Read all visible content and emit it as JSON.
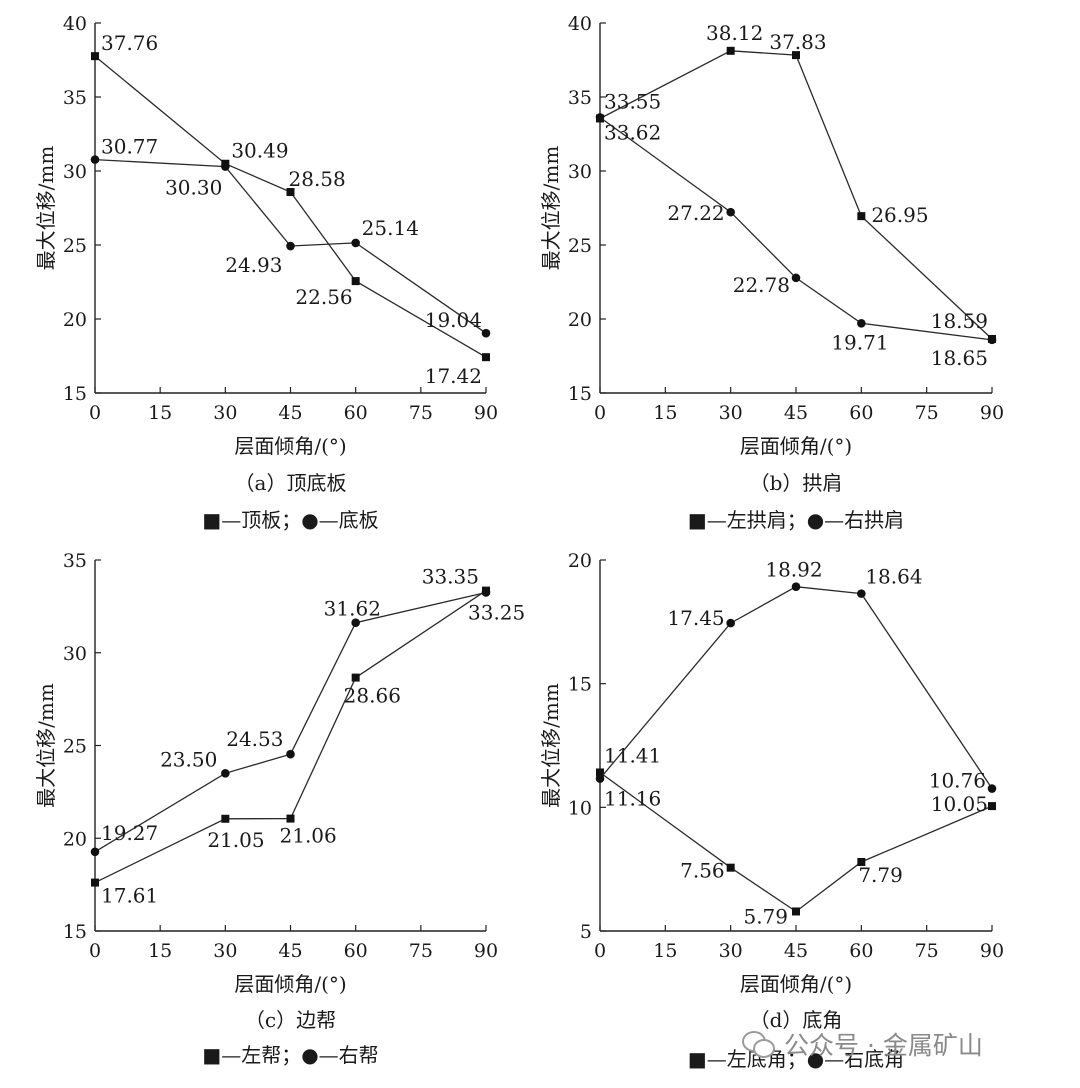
{
  "chart_data": [
    {
      "type": "line",
      "caption": "（a）顶底板",
      "legend": "■—顶板；●—底板",
      "xlabel": "层面倾角/(°)",
      "ylabel": "最大位移/mm",
      "x": [
        0,
        30,
        45,
        60,
        90
      ],
      "xticks": [
        0,
        15,
        30,
        45,
        60,
        75,
        90
      ],
      "yticks": [
        15,
        20,
        25,
        30,
        35,
        40
      ],
      "xlim": [
        0,
        90
      ],
      "ylim": [
        15,
        40
      ],
      "series": [
        {
          "name": "顶板",
          "marker": "square",
          "values": [
            37.76,
            30.49,
            28.58,
            22.56,
            17.42
          ],
          "labels": [
            "37.76",
            "30.49",
            "28.58",
            "22.56",
            "17.42"
          ]
        },
        {
          "name": "底板",
          "marker": "circle",
          "values": [
            30.77,
            30.3,
            24.93,
            25.14,
            19.04
          ],
          "labels": [
            "30.77",
            "30.30",
            "24.93",
            "25.14",
            "19.04"
          ]
        }
      ]
    },
    {
      "type": "line",
      "caption": "（b）拱肩",
      "legend": "■—左拱肩；●—右拱肩",
      "xlabel": "层面倾角/(°)",
      "ylabel": "最大位移/mm",
      "x": [
        0,
        30,
        45,
        60,
        90
      ],
      "xticks": [
        0,
        15,
        30,
        45,
        60,
        75,
        90
      ],
      "yticks": [
        15,
        20,
        25,
        30,
        35,
        40
      ],
      "xlim": [
        0,
        90
      ],
      "ylim": [
        15,
        40
      ],
      "series": [
        {
          "name": "左拱肩",
          "marker": "square",
          "values": [
            33.55,
            38.12,
            37.83,
            26.95,
            18.65
          ],
          "labels": [
            "33.55",
            "38.12",
            "37.83",
            "26.95",
            "18.65"
          ]
        },
        {
          "name": "右拱肩",
          "marker": "circle",
          "values": [
            33.62,
            27.22,
            22.78,
            19.71,
            18.59
          ],
          "labels": [
            "33.62",
            "27.22",
            "22.78",
            "19.71",
            "18.59"
          ]
        }
      ]
    },
    {
      "type": "line",
      "caption": "（c）边帮",
      "legend": "■—左帮；●—右帮",
      "xlabel": "层面倾角/(°)",
      "ylabel": "最大位移/mm",
      "x": [
        0,
        30,
        45,
        60,
        90
      ],
      "xticks": [
        0,
        15,
        30,
        45,
        60,
        75,
        90
      ],
      "yticks": [
        15,
        20,
        25,
        30,
        35
      ],
      "xlim": [
        0,
        90
      ],
      "ylim": [
        15,
        35
      ],
      "series": [
        {
          "name": "左帮",
          "marker": "square",
          "values": [
            17.61,
            21.05,
            21.06,
            28.66,
            33.35
          ],
          "labels": [
            "17.61",
            "21.05",
            "21.06",
            "28.66",
            "33.35"
          ]
        },
        {
          "name": "右帮",
          "marker": "circle",
          "values": [
            19.27,
            23.5,
            24.53,
            31.62,
            33.25
          ],
          "labels": [
            "19.27",
            "23.50",
            "24.53",
            "31.62",
            "33.25"
          ]
        }
      ]
    },
    {
      "type": "line",
      "caption": "（d）底角",
      "legend": "■—左底角；●—右底角",
      "xlabel": "层面倾角/(°)",
      "ylabel": "最大位移/mm",
      "x": [
        0,
        30,
        45,
        60,
        90
      ],
      "xticks": [
        0,
        15,
        30,
        45,
        60,
        75,
        90
      ],
      "yticks": [
        5,
        10,
        15,
        20
      ],
      "xlim": [
        0,
        90
      ],
      "ylim": [
        5,
        20
      ],
      "series": [
        {
          "name": "左底角",
          "marker": "square",
          "values": [
            11.41,
            7.56,
            5.79,
            7.79,
            10.05
          ],
          "labels": [
            "11.41",
            "7.56",
            "5.79",
            "7.79",
            "10.05"
          ]
        },
        {
          "name": "右底角",
          "marker": "circle",
          "values": [
            11.16,
            17.45,
            18.92,
            18.64,
            10.76
          ],
          "labels": [
            "11.16",
            "17.45",
            "18.92",
            "18.64",
            "10.76"
          ]
        }
      ]
    }
  ],
  "watermark": {
    "text": "公众号 · 金属矿山"
  }
}
